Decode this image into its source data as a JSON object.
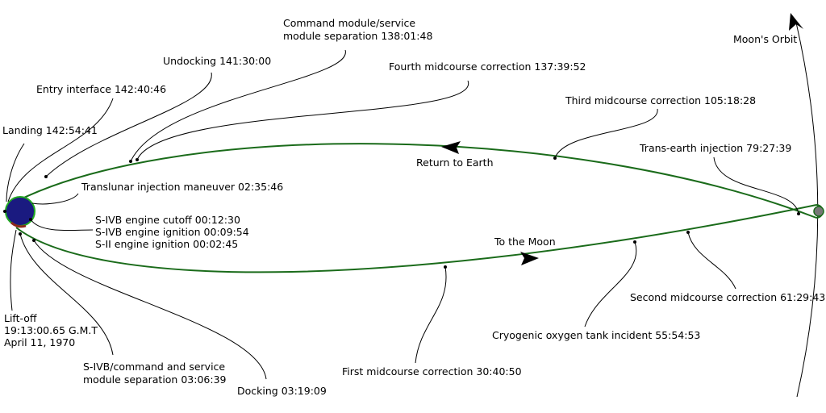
{
  "colors": {
    "trajectory": "#1a6b1a",
    "earth": "#1a1a80",
    "moon": "#777777"
  },
  "labels": {
    "cm_sep": [
      "Command module/service",
      "module separation 138:01:48"
    ],
    "undocking": "Undocking 141:30:00",
    "entry": "Entry interface 142:40:46",
    "landing": "Landing 142:54:41",
    "fourth_mcc": "Fourth midcourse correction 137:39:52",
    "third_mcc": "Third midcourse correction 105:18:28",
    "tei": "Trans-earth injection 79:27:39",
    "return": "Return to Earth",
    "moon_orbit": "Moon's Orbit",
    "tli": "Translunar injection maneuver 02:35:46",
    "sivb": [
      "S-IVB engine cutoff 00:12:30",
      "S-IVB engine ignition 00:09:54",
      "S-II engine ignition 00:02:45"
    ],
    "to_moon": "To the Moon",
    "second_mcc": "Second midcourse correction 61:29:43",
    "cryo": "Cryogenic oxygen tank incident 55:54:53",
    "first_mcc": "First midcourse correction 30:40:50",
    "docking": "Docking 03:19:09",
    "sivb_sep": [
      "S-IVB/command and service",
      "module separation 03:06:39"
    ],
    "liftoff": [
      "Lift-off",
      "19:13:00.65 G.M.T",
      "April 11, 1970"
    ]
  }
}
